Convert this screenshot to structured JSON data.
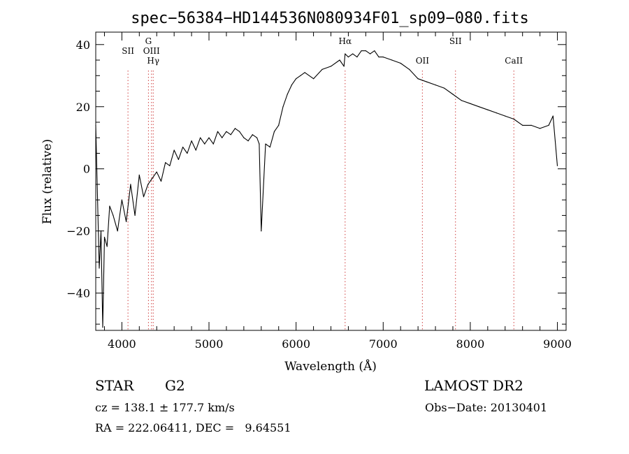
{
  "chart_data": {
    "type": "line",
    "title": "spec−56384−HD144536N080934F01_sp09−080.fits",
    "xlabel": "Wavelength (Å)",
    "ylabel": "Flux (relative)",
    "xlim": [
      3700,
      9100
    ],
    "ylim": [
      -52,
      44
    ],
    "xticks": [
      4000,
      5000,
      6000,
      7000,
      8000,
      9000
    ],
    "yticks": [
      -40,
      -20,
      0,
      20,
      40
    ],
    "yticklabels": [
      "−40",
      "−20",
      "0",
      "20",
      "40"
    ],
    "grid": false,
    "line_color": "#000000",
    "marker_color": "#d04040",
    "series": [
      {
        "x": [
          3700,
          3740,
          3760,
          3780,
          3800,
          3830,
          3860,
          3900,
          3950,
          4000,
          4050,
          4100,
          4150,
          4200,
          4250,
          4300,
          4350,
          4400,
          4450,
          4500,
          4550,
          4600,
          4650,
          4700,
          4750,
          4800,
          4850,
          4900,
          4950,
          5000,
          5050,
          5100,
          5150,
          5200,
          5250,
          5300,
          5350,
          5400,
          5450,
          5500,
          5550,
          5577,
          5600,
          5650,
          5700,
          5750,
          5800,
          5850,
          5900,
          5950,
          6000,
          6050,
          6100,
          6200,
          6300,
          6400,
          6500,
          6550,
          6563,
          6600,
          6650,
          6700,
          6750,
          6800,
          6850,
          6900,
          6950,
          7000,
          7100,
          7200,
          7300,
          7400,
          7500,
          7600,
          7700,
          7800,
          7900,
          8000,
          8100,
          8200,
          8300,
          8400,
          8500,
          8600,
          8700,
          8800,
          8900,
          8950,
          9000
        ],
        "values": [
          14,
          -32,
          -20,
          -51,
          -22,
          -25,
          -12,
          -15,
          -20,
          -10,
          -17,
          -5,
          -15,
          -2,
          -9,
          -5,
          -3,
          -1,
          -4,
          2,
          1,
          6,
          3,
          7,
          5,
          9,
          6,
          10,
          8,
          10,
          8,
          12,
          10,
          12,
          11,
          13,
          12,
          10,
          9,
          11,
          10,
          8,
          -20,
          8,
          7,
          12,
          14,
          20,
          24,
          27,
          29,
          30,
          31,
          29,
          32,
          33,
          35,
          33,
          37,
          36,
          37,
          36,
          38,
          38,
          37,
          38,
          36,
          36,
          35,
          34,
          32,
          29,
          28,
          27,
          26,
          24,
          22,
          21,
          20,
          19,
          18,
          17,
          16,
          14,
          14,
          13,
          14,
          17,
          1
        ]
      }
    ],
    "line_markers": [
      {
        "label": "SII",
        "x": 4070,
        "label_row": 1
      },
      {
        "label": "G",
        "x": 4305,
        "label_row": 0
      },
      {
        "label": "OIII",
        "x": 4340,
        "label_row": 1
      },
      {
        "label": "Hγ",
        "x": 4360,
        "label_row": 2
      },
      {
        "label": "Hα",
        "x": 6563,
        "label_row": 0
      },
      {
        "label": "OII",
        "x": 7450,
        "label_row": 2
      },
      {
        "label": "SII",
        "x": 7830,
        "label_row": 0
      },
      {
        "label": "CaII",
        "x": 8500,
        "label_row": 2
      }
    ]
  },
  "info": {
    "object_class": "STAR",
    "subclass": "G2",
    "survey": "LAMOST DR2",
    "cz": "cz = 138.1 ± 177.7 km/s",
    "obs_date": "Obs−Date: 20130401",
    "radec": "RA = 222.06411, DEC =   9.64551"
  }
}
